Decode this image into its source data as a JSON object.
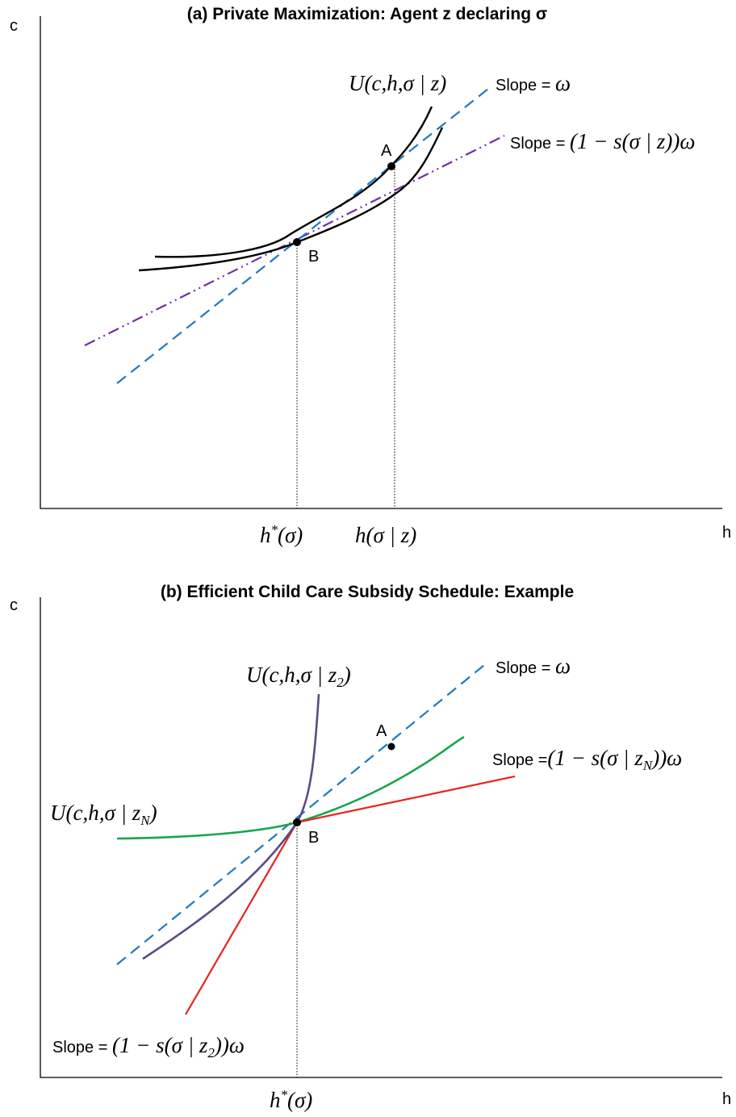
{
  "panel_a": {
    "title": "(a) Private Maximization: Agent z declaring σ",
    "y_axis_label": "c",
    "x_axis_label": "h",
    "curve_label": "U(c,h,σ | z)",
    "slope_omega": {
      "prefix": "Slope =",
      "formula": "ω"
    },
    "slope_subsidy": {
      "prefix": "Slope =",
      "formula": "(1 − s(σ | z))ω"
    },
    "point_a": "A",
    "point_b": "B",
    "h_star": {
      "base": "h",
      "sup": "*",
      "rest": "(σ)"
    },
    "h_z": "h(σ | z)"
  },
  "panel_b": {
    "title": "(b) Efficient Child Care Subsidy Schedule: Example",
    "y_axis_label": "c",
    "x_axis_label": "h",
    "curve_z2": {
      "start": "U(c,h,σ | z",
      "sub": "2",
      "end": ")"
    },
    "curve_zn": {
      "start": "U(c,h,σ | z",
      "sub": "N",
      "end": ")"
    },
    "slope_omega": {
      "prefix": "Slope =",
      "formula": "ω"
    },
    "slope_zn": {
      "prefix": "Slope =",
      "start": "(1 − s(σ | z",
      "sub": "N",
      "end": "))ω"
    },
    "slope_z2": {
      "prefix": "Slope =",
      "start": "(1 − s(σ | z",
      "sub": "2",
      "end": "))ω"
    },
    "point_a": "A",
    "point_b": "B",
    "h_star": {
      "base": "h",
      "sup": "*",
      "rest": "(σ)"
    }
  }
}
